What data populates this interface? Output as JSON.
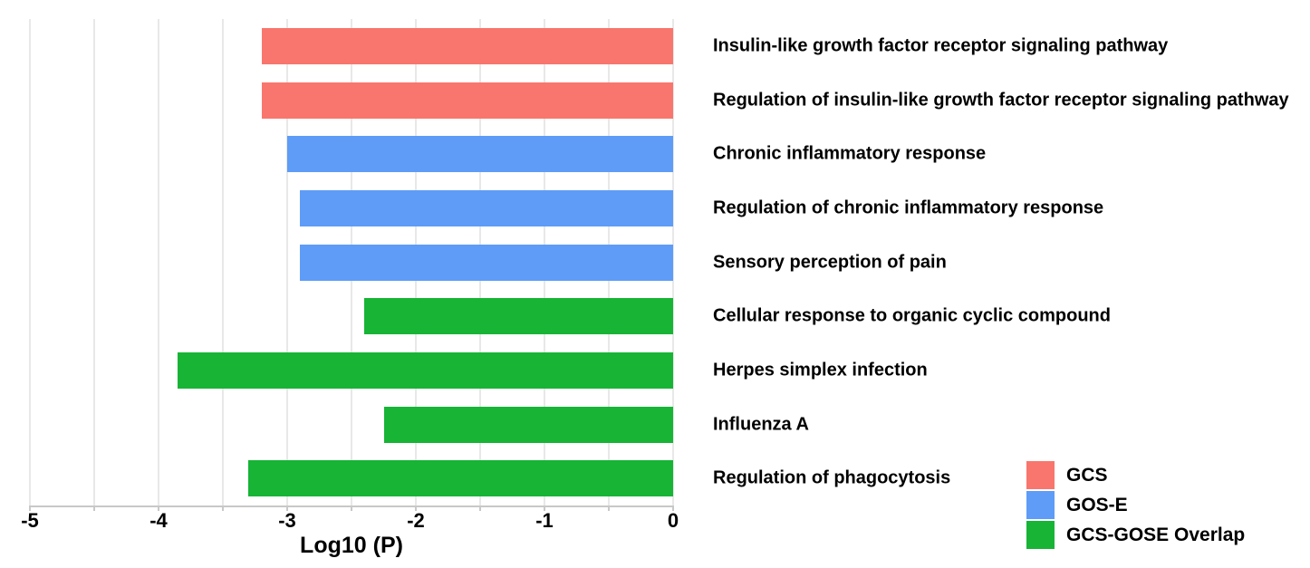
{
  "chart_data": {
    "type": "bar",
    "orientation": "horizontal",
    "title": "",
    "xlabel": "Log10 (P)",
    "ylabel": "",
    "xlim": [
      -5,
      0
    ],
    "x_ticks": [
      -5,
      -4,
      -3,
      -2,
      -1,
      0
    ],
    "x_tick_labels": [
      "-5",
      "-4",
      "-3",
      "-2",
      "-1",
      "0"
    ],
    "gridline_step": 0.5,
    "grid": true,
    "categories": [
      {
        "label": "Insulin-like growth factor receptor signaling pathway",
        "value": -3.2,
        "group": "GCS"
      },
      {
        "label": "Regulation of insulin-like growth factor receptor signaling pathway",
        "value": -3.2,
        "group": "GCS"
      },
      {
        "label": "Chronic inflammatory response",
        "value": -3.0,
        "group": "GOS-E"
      },
      {
        "label": "Regulation of chronic inflammatory response",
        "value": -2.9,
        "group": "GOS-E"
      },
      {
        "label": "Sensory perception of pain",
        "value": -2.9,
        "group": "GOS-E"
      },
      {
        "label": "Cellular response to organic cyclic compound",
        "value": -2.4,
        "group": "GCS-GOSE Overlap"
      },
      {
        "label": "Herpes simplex infection",
        "value": -3.85,
        "group": "GCS-GOSE Overlap"
      },
      {
        "label": "Influenza A",
        "value": -2.25,
        "group": "GCS-GOSE Overlap"
      },
      {
        "label": "Regulation of phagocytosis",
        "value": -3.3,
        "group": "GCS-GOSE Overlap"
      }
    ],
    "legend": {
      "position": "bottom-right",
      "entries": [
        {
          "label": "GCS",
          "color": "#F8766D"
        },
        {
          "label": "GOS-E",
          "color": "#5E9CF8"
        },
        {
          "label": "GCS-GOSE Overlap",
          "color": "#17B435"
        }
      ]
    },
    "colors": {
      "GCS": "#F8766D",
      "GOS-E": "#5E9CF8",
      "GCS-GOSE Overlap": "#17B435"
    },
    "background_color": "#FFFFFF",
    "gridline_color": "#E8E8E8",
    "axis_line_color": "#C8C8C8",
    "text_color": "#000000"
  }
}
